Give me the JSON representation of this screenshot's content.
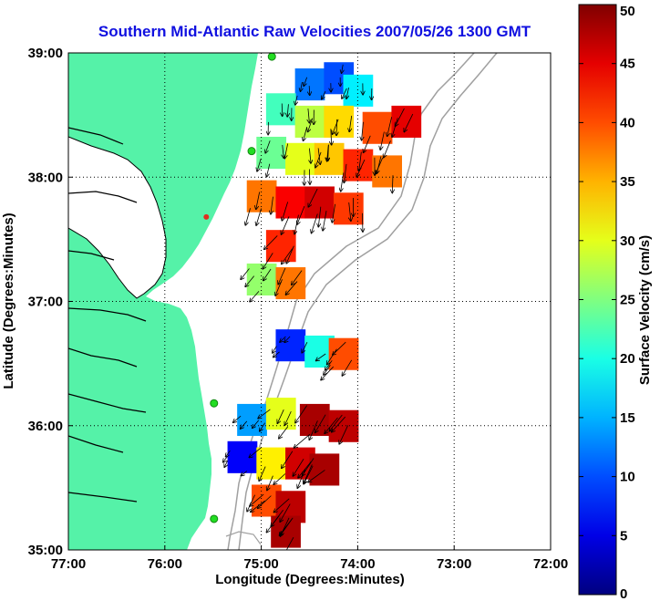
{
  "chart_data": {
    "type": "heatmap",
    "title": "Southern Mid-Atlantic Raw Velocities 2007/05/26 1300 GMT",
    "xlabel": "Longitude (Degrees:Minutes)",
    "ylabel": "Latitude (Degrees:Minutes)",
    "colorbar_label": "Surface Velocity (cm/s)",
    "x_ticks": [
      {
        "value": -77,
        "label": "77:00"
      },
      {
        "value": -76,
        "label": "76:00"
      },
      {
        "value": -75,
        "label": "75:00"
      },
      {
        "value": -74,
        "label": "74:00"
      },
      {
        "value": -73,
        "label": "73:00"
      },
      {
        "value": -72,
        "label": "72:00"
      }
    ],
    "y_ticks": [
      {
        "value": 35,
        "label": "35:00"
      },
      {
        "value": 36,
        "label": "36:00"
      },
      {
        "value": 37,
        "label": "37:00"
      },
      {
        "value": 38,
        "label": "38:00"
      },
      {
        "value": 39,
        "label": "39:00"
      }
    ],
    "xlim": [
      -77,
      -72
    ],
    "ylim": [
      35,
      39
    ],
    "colorbar_ticks": [
      {
        "value": 0,
        "label": "0"
      },
      {
        "value": 5,
        "label": "5"
      },
      {
        "value": 10,
        "label": "10"
      },
      {
        "value": 15,
        "label": "15"
      },
      {
        "value": 20,
        "label": "20"
      },
      {
        "value": 25,
        "label": "25"
      },
      {
        "value": 30,
        "label": "30"
      },
      {
        "value": 35,
        "label": "35"
      },
      {
        "value": 40,
        "label": "40"
      },
      {
        "value": 45,
        "label": "45"
      },
      {
        "value": 50,
        "label": "50"
      }
    ],
    "clim": [
      0,
      50
    ],
    "grid": true,
    "colormap": "jet",
    "land_color": "#55f2a8",
    "coastline_color": "#000000",
    "bathymetry_color": "#a0a0a0",
    "station_color": "#22dd22",
    "arrow_color": "#000000",
    "stations": [
      {
        "lon": -74.89,
        "lat": 38.97
      },
      {
        "lon": -75.1,
        "lat": 38.21
      },
      {
        "lon": -75.49,
        "lat": 36.18
      },
      {
        "lon": -75.49,
        "lat": 35.25
      }
    ],
    "marker_red": {
      "lon": -75.57,
      "lat": 37.68
    },
    "cells": [
      {
        "lon": -74.5,
        "lat": 38.75,
        "v": 12
      },
      {
        "lon": -74.2,
        "lat": 38.8,
        "v": 10
      },
      {
        "lon": -74.0,
        "lat": 38.7,
        "v": 18
      },
      {
        "lon": -74.8,
        "lat": 38.55,
        "v": 22
      },
      {
        "lon": -74.5,
        "lat": 38.45,
        "v": 28
      },
      {
        "lon": -74.2,
        "lat": 38.45,
        "v": 33
      },
      {
        "lon": -73.8,
        "lat": 38.4,
        "v": 40
      },
      {
        "lon": -73.5,
        "lat": 38.45,
        "v": 45
      },
      {
        "lon": -74.9,
        "lat": 38.2,
        "v": 24
      },
      {
        "lon": -74.6,
        "lat": 38.15,
        "v": 30
      },
      {
        "lon": -74.3,
        "lat": 38.15,
        "v": 34
      },
      {
        "lon": -74.0,
        "lat": 38.1,
        "v": 42
      },
      {
        "lon": -73.7,
        "lat": 38.05,
        "v": 38
      },
      {
        "lon": -75.0,
        "lat": 37.85,
        "v": 38
      },
      {
        "lon": -74.7,
        "lat": 37.8,
        "v": 44
      },
      {
        "lon": -74.4,
        "lat": 37.8,
        "v": 46
      },
      {
        "lon": -74.1,
        "lat": 37.75,
        "v": 41
      },
      {
        "lon": -74.8,
        "lat": 37.45,
        "v": 42
      },
      {
        "lon": -75.0,
        "lat": 37.18,
        "v": 26
      },
      {
        "lon": -74.7,
        "lat": 37.15,
        "v": 38
      },
      {
        "lon": -74.7,
        "lat": 36.65,
        "v": 8
      },
      {
        "lon": -74.4,
        "lat": 36.6,
        "v": 20
      },
      {
        "lon": -74.15,
        "lat": 36.58,
        "v": 40
      },
      {
        "lon": -75.1,
        "lat": 36.05,
        "v": 14
      },
      {
        "lon": -74.8,
        "lat": 36.1,
        "v": 30
      },
      {
        "lon": -74.45,
        "lat": 36.05,
        "v": 48
      },
      {
        "lon": -74.15,
        "lat": 36.0,
        "v": 47
      },
      {
        "lon": -75.2,
        "lat": 35.75,
        "v": 6
      },
      {
        "lon": -74.9,
        "lat": 35.7,
        "v": 32
      },
      {
        "lon": -74.6,
        "lat": 35.7,
        "v": 46
      },
      {
        "lon": -74.35,
        "lat": 35.65,
        "v": 48
      },
      {
        "lon": -74.95,
        "lat": 35.4,
        "v": 40
      },
      {
        "lon": -74.7,
        "lat": 35.35,
        "v": 47
      },
      {
        "lon": -74.75,
        "lat": 35.15,
        "v": 48
      }
    ]
  }
}
